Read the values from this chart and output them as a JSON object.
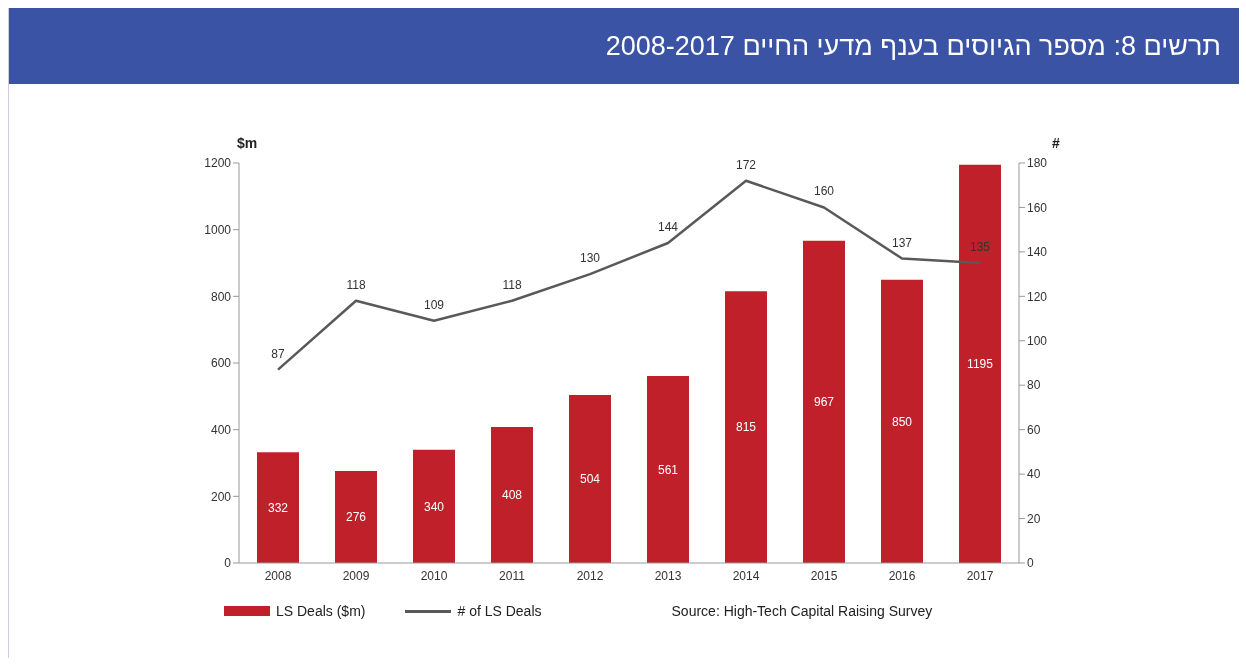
{
  "chart_data": {
    "type": "bar",
    "title": "תרשים 8: מספר הגיוסים בענף מדעי החיים 2008-2017",
    "ylabel": "$m",
    "y2label": "#",
    "categories": [
      "2008",
      "2009",
      "2010",
      "2011",
      "2012",
      "2013",
      "2014",
      "2015",
      "2016",
      "2017"
    ],
    "series": [
      {
        "name": "LS Deals ($m)",
        "color": "#c0202a",
        "values": [
          332,
          276,
          340,
          408,
          504,
          561,
          815,
          967,
          850,
          1195
        ]
      },
      {
        "name": "# of LS Deals",
        "type": "line",
        "axis": "y2",
        "color": "#595959",
        "values": [
          87,
          118,
          109,
          118,
          130,
          144,
          172,
          160,
          137,
          135
        ]
      }
    ],
    "ylim": [
      0,
      1200
    ],
    "yticks": [
      0,
      200,
      400,
      600,
      800,
      1000,
      1200
    ],
    "y2lim": [
      0,
      180
    ],
    "y2ticks": [
      0,
      20,
      40,
      60,
      80,
      100,
      120,
      140,
      160,
      180
    ],
    "data_labels": true,
    "grid": false,
    "legend": "bottom",
    "marker": "none",
    "annotations": [
      "Source: High-Tech Capital Raising Survey"
    ]
  }
}
